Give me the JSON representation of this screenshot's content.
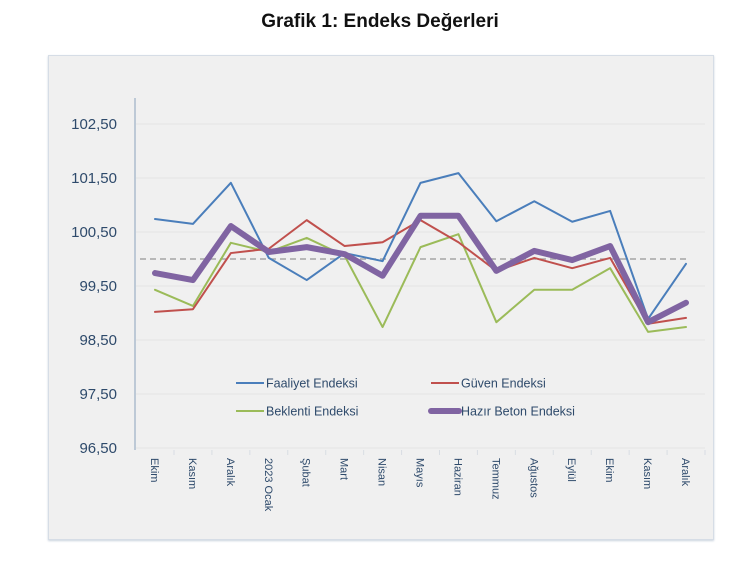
{
  "chart_data": {
    "type": "line",
    "title": "Grafik 1: Endeks Değerleri",
    "xlabel": "",
    "ylabel": "",
    "ylim": [
      96.5,
      102.5
    ],
    "yticks": [
      102.5,
      101.5,
      100.5,
      99.5,
      98.5,
      97.5,
      96.5
    ],
    "ytick_labels": [
      "102,50",
      "101,50",
      "100,50",
      "99,50",
      "98,50",
      "97,50",
      "96,50"
    ],
    "grid": true,
    "reference_line": {
      "value": 100.0,
      "style": "dashed",
      "color": "#a6a6a6"
    },
    "categories": [
      "Ekim",
      "Kasım",
      "Aralık",
      "2023 Ocak",
      "Şubat",
      "Mart",
      "Nisan",
      "Mayıs",
      "Haziran",
      "Temmuz",
      "Ağustos",
      "Eylül",
      "Ekim",
      "Kasım",
      "Aralık"
    ],
    "legend_position": "bottom-center-inside",
    "series": [
      {
        "name": "Faaliyet Endeksi",
        "color": "#4a7ebb",
        "values": [
          100.74,
          100.65,
          101.41,
          100.02,
          99.61,
          100.11,
          99.96,
          101.41,
          101.59,
          100.7,
          101.07,
          100.69,
          100.89,
          98.89,
          99.91
        ]
      },
      {
        "name": "Güven Endeksi",
        "color": "#c0504d",
        "values": [
          99.02,
          99.07,
          100.11,
          100.19,
          100.72,
          100.24,
          100.31,
          100.72,
          100.31,
          99.78,
          100.02,
          99.83,
          100.02,
          98.8,
          98.91
        ]
      },
      {
        "name": "Beklenti Endeksi",
        "color": "#9bbb59",
        "values": [
          99.43,
          99.13,
          100.3,
          100.13,
          100.39,
          100.06,
          98.74,
          100.22,
          100.46,
          98.83,
          99.43,
          99.43,
          99.83,
          98.65,
          98.74
        ]
      },
      {
        "name": "Hazır Beton Endeksi",
        "color": "#8064a2",
        "thick": true,
        "values": [
          99.74,
          99.61,
          100.61,
          100.13,
          100.22,
          100.09,
          99.69,
          100.8,
          100.8,
          99.78,
          100.15,
          99.98,
          100.24,
          98.83,
          99.19
        ]
      }
    ]
  }
}
